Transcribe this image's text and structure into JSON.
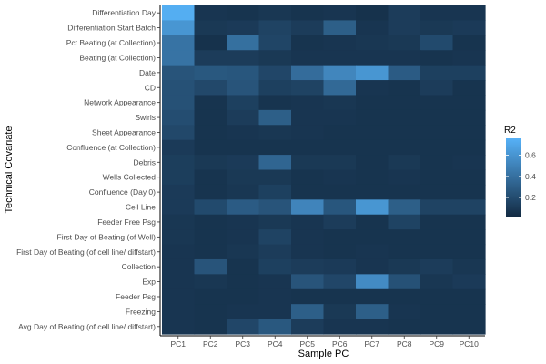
{
  "chart_data": {
    "type": "heatmap",
    "xlabel": "Sample PC",
    "ylabel": "Technical Covariate",
    "x_categories": [
      "PC1",
      "PC2",
      "PC3",
      "PC4",
      "PC5",
      "PC6",
      "PC7",
      "PC8",
      "PC9",
      "PC10"
    ],
    "y_categories": [
      "Differentiation Day",
      "Differentiation Start Batch",
      "Pct Beating (at Collection)",
      "Beating (at Collection)",
      "Date",
      "CD",
      "Network Appearance",
      "Swirls",
      "Sheet Appearance",
      "Confluence (at Collection)",
      "Debris",
      "Wells Collected",
      "Confluence (Day 0)",
      "Cell Line",
      "Feeder Free Psg",
      "First Day of Beating (of Well)",
      "First Day of Beating (of cell line/ diffstart)",
      "Collection",
      "Exp",
      "Feeder Psg",
      "Freezing",
      "Avg Day of Beating (of cell line/ diffstart)"
    ],
    "values": [
      [
        0.76,
        0.06,
        0.05,
        0.07,
        0.05,
        0.06,
        0.04,
        0.1,
        0.06,
        0.06
      ],
      [
        0.62,
        0.08,
        0.09,
        0.14,
        0.1,
        0.3,
        0.06,
        0.1,
        0.08,
        0.09
      ],
      [
        0.42,
        0.04,
        0.4,
        0.15,
        0.05,
        0.06,
        0.07,
        0.08,
        0.18,
        0.05
      ],
      [
        0.42,
        0.1,
        0.1,
        0.08,
        0.06,
        0.06,
        0.06,
        0.06,
        0.05,
        0.06
      ],
      [
        0.24,
        0.26,
        0.25,
        0.16,
        0.38,
        0.53,
        0.62,
        0.28,
        0.12,
        0.12
      ],
      [
        0.22,
        0.17,
        0.24,
        0.12,
        0.14,
        0.36,
        0.06,
        0.05,
        0.1,
        0.05
      ],
      [
        0.22,
        0.05,
        0.12,
        0.05,
        0.06,
        0.07,
        0.05,
        0.05,
        0.05,
        0.05
      ],
      [
        0.2,
        0.05,
        0.1,
        0.3,
        0.06,
        0.06,
        0.05,
        0.05,
        0.05,
        0.05
      ],
      [
        0.17,
        0.05,
        0.06,
        0.07,
        0.06,
        0.05,
        0.05,
        0.05,
        0.05,
        0.05
      ],
      [
        0.09,
        0.05,
        0.05,
        0.05,
        0.05,
        0.05,
        0.05,
        0.05,
        0.05,
        0.05
      ],
      [
        0.11,
        0.08,
        0.09,
        0.34,
        0.08,
        0.08,
        0.05,
        0.08,
        0.05,
        0.06
      ],
      [
        0.11,
        0.05,
        0.08,
        0.08,
        0.05,
        0.06,
        0.05,
        0.06,
        0.05,
        0.05
      ],
      [
        0.09,
        0.05,
        0.07,
        0.12,
        0.05,
        0.05,
        0.05,
        0.05,
        0.05,
        0.05
      ],
      [
        0.09,
        0.18,
        0.28,
        0.24,
        0.52,
        0.25,
        0.62,
        0.3,
        0.14,
        0.14
      ],
      [
        0.07,
        0.05,
        0.06,
        0.08,
        0.06,
        0.1,
        0.05,
        0.14,
        0.05,
        0.05
      ],
      [
        0.07,
        0.05,
        0.06,
        0.14,
        0.06,
        0.05,
        0.05,
        0.05,
        0.05,
        0.05
      ],
      [
        0.06,
        0.05,
        0.07,
        0.1,
        0.06,
        0.05,
        0.06,
        0.05,
        0.05,
        0.05
      ],
      [
        0.06,
        0.24,
        0.05,
        0.12,
        0.1,
        0.09,
        0.06,
        0.08,
        0.1,
        0.07
      ],
      [
        0.06,
        0.07,
        0.05,
        0.06,
        0.24,
        0.16,
        0.56,
        0.22,
        0.07,
        0.09
      ],
      [
        0.06,
        0.05,
        0.05,
        0.06,
        0.05,
        0.05,
        0.05,
        0.05,
        0.05,
        0.05
      ],
      [
        0.06,
        0.05,
        0.06,
        0.06,
        0.3,
        0.08,
        0.3,
        0.06,
        0.05,
        0.05
      ],
      [
        0.06,
        0.05,
        0.16,
        0.26,
        0.1,
        0.06,
        0.06,
        0.05,
        0.05,
        0.05
      ]
    ],
    "color_scale": {
      "low": "#132B43",
      "high": "#56B1F7",
      "min": 0.0,
      "max": 0.78
    },
    "legend": {
      "title": "R2",
      "ticks": [
        0.2,
        0.4,
        0.6
      ],
      "tick_labels": [
        "0.2",
        "0.4",
        "0.6"
      ],
      "placement": "right"
    }
  }
}
